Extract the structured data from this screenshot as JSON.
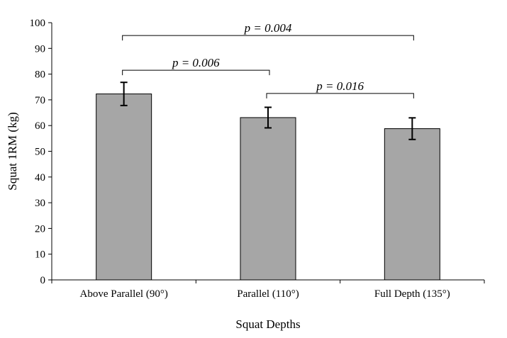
{
  "chart_data": {
    "type": "bar",
    "categories": [
      "Above Parallel (90°)",
      "Parallel (110°)",
      "Full Depth (135°)"
    ],
    "values": [
      72.3,
      63.1,
      58.8
    ],
    "error": [
      4.5,
      4.0,
      4.2
    ],
    "xlabel": "Squat Depths",
    "ylabel": "Squat 1RM (kg)",
    "ylim": [
      0,
      100
    ],
    "yticks": [
      0,
      10,
      20,
      30,
      40,
      50,
      60,
      70,
      80,
      90,
      100
    ],
    "grid": false,
    "bar_color": "#a6a6a6",
    "annotations": [
      {
        "from": 0,
        "to": 2,
        "label": "p = 0.004",
        "level": 95
      },
      {
        "from": 0,
        "to": 1,
        "label": "p = 0.006",
        "level": 81.5
      },
      {
        "from": 1,
        "to": 2,
        "label": "p = 0.016",
        "level": 72.5
      }
    ]
  }
}
